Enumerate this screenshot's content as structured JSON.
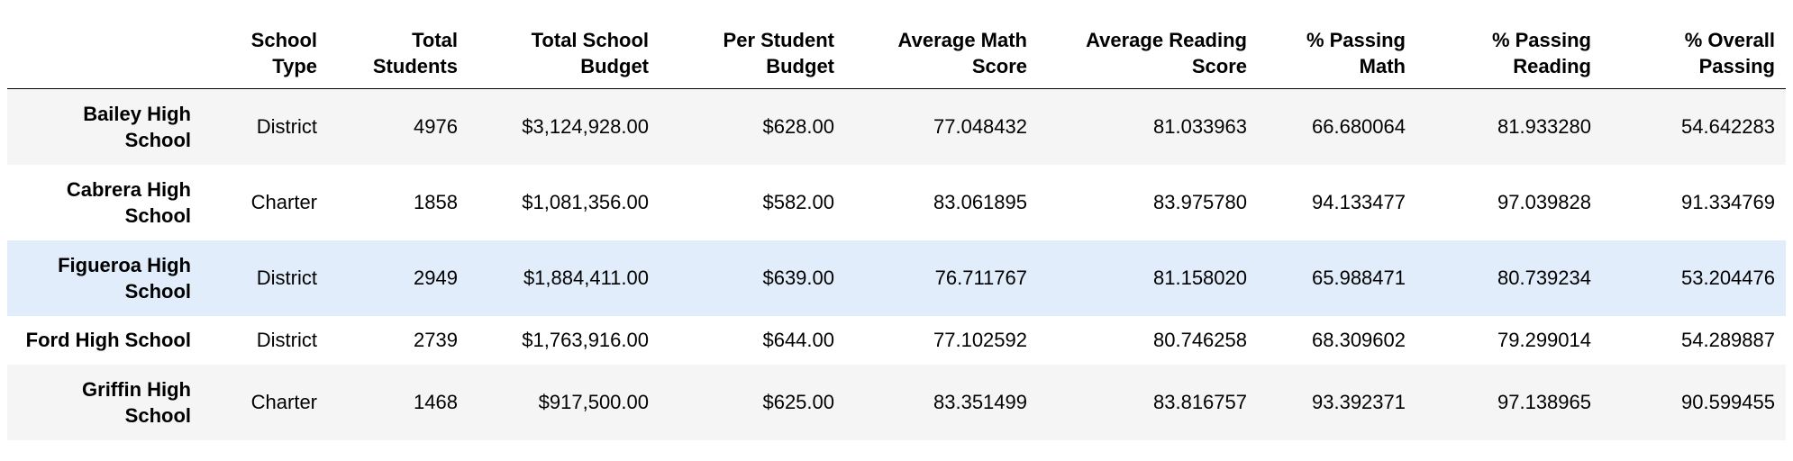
{
  "columns": [
    {
      "key": "index",
      "label": ""
    },
    {
      "key": "school_type",
      "label": "School Type"
    },
    {
      "key": "total_students",
      "label": "Total Students"
    },
    {
      "key": "total_budget",
      "label": "Total School Budget"
    },
    {
      "key": "per_student_budget",
      "label": "Per Student Budget"
    },
    {
      "key": "avg_math",
      "label": "Average Math Score"
    },
    {
      "key": "avg_reading",
      "label": "Average Reading Score"
    },
    {
      "key": "pct_math",
      "label": "% Passing Math"
    },
    {
      "key": "pct_reading",
      "label": "% Passing Reading"
    },
    {
      "key": "pct_overall",
      "label": "% Overall Passing"
    }
  ],
  "rows": [
    {
      "school": "Bailey High School",
      "school_type": "District",
      "total_students": "4976",
      "total_budget": "$3,124,928.00",
      "per_student_budget": "$628.00",
      "avg_math": "77.048432",
      "avg_reading": "81.033963",
      "pct_math": "66.680064",
      "pct_reading": "81.933280",
      "pct_overall": "54.642283"
    },
    {
      "school": "Cabrera High School",
      "school_type": "Charter",
      "total_students": "1858",
      "total_budget": "$1,081,356.00",
      "per_student_budget": "$582.00",
      "avg_math": "83.061895",
      "avg_reading": "83.975780",
      "pct_math": "94.133477",
      "pct_reading": "97.039828",
      "pct_overall": "91.334769"
    },
    {
      "school": "Figueroa High School",
      "school_type": "District",
      "total_students": "2949",
      "total_budget": "$1,884,411.00",
      "per_student_budget": "$639.00",
      "avg_math": "76.711767",
      "avg_reading": "81.158020",
      "pct_math": "65.988471",
      "pct_reading": "80.739234",
      "pct_overall": "53.204476"
    },
    {
      "school": "Ford High School",
      "school_type": "District",
      "total_students": "2739",
      "total_budget": "$1,763,916.00",
      "per_student_budget": "$644.00",
      "avg_math": "77.102592",
      "avg_reading": "80.746258",
      "pct_math": "68.309602",
      "pct_reading": "79.299014",
      "pct_overall": "54.289887"
    },
    {
      "school": "Griffin High School",
      "school_type": "Charter",
      "total_students": "1468",
      "total_budget": "$917,500.00",
      "per_student_budget": "$625.00",
      "avg_math": "83.351499",
      "avg_reading": "83.816757",
      "pct_math": "93.392371",
      "pct_reading": "97.138965",
      "pct_overall": "90.599455"
    }
  ],
  "hover_row": 2,
  "colors": {
    "header_rule": "#000000",
    "row_odd": "#f5f5f5",
    "row_even": "#ffffff",
    "row_hover": "#e1edfb",
    "text": "#000000"
  }
}
